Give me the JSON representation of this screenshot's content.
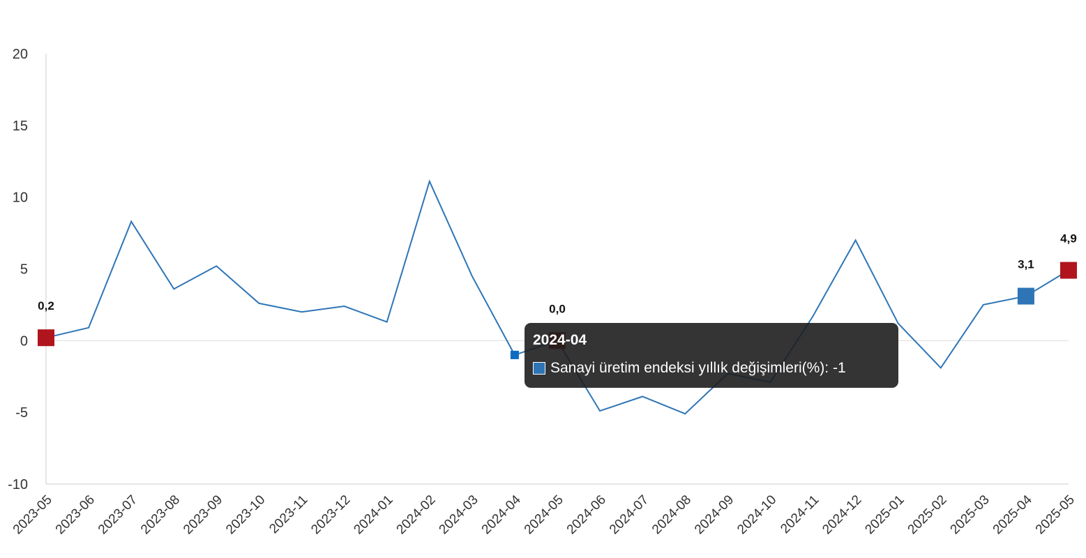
{
  "chart_data": {
    "type": "line",
    "title": "",
    "xlabel": "",
    "ylabel": "",
    "ylim": [
      -10,
      20
    ],
    "yticks": [
      "20",
      "15",
      "10",
      "5",
      "0",
      "-5",
      "-10"
    ],
    "ytick_values": [
      20,
      15,
      10,
      5,
      0,
      -5,
      -10
    ],
    "categories": [
      "2023-05",
      "2023-06",
      "2023-07",
      "2023-08",
      "2023-09",
      "2023-10",
      "2023-11",
      "2023-12",
      "2024-01",
      "2024-02",
      "2024-03",
      "2024-04",
      "2024-05",
      "2024-06",
      "2024-07",
      "2024-08",
      "2024-09",
      "2024-10",
      "2024-11",
      "2024-12",
      "2025-01",
      "2025-02",
      "2025-03",
      "2025-04",
      "2025-05"
    ],
    "series": [
      {
        "name": "Sanayi üretim endeksi yıllık değişimleri(%)",
        "color": "#2e75b6",
        "values": [
          0.2,
          0.9,
          8.3,
          3.6,
          5.2,
          2.6,
          2.0,
          2.4,
          1.3,
          11.1,
          4.5,
          -1.0,
          0.0,
          -4.9,
          -3.9,
          -5.1,
          -2.3,
          -2.9,
          1.7,
          7.0,
          1.2,
          -1.9,
          2.5,
          3.1,
          4.9
        ]
      }
    ],
    "data_labels": [
      {
        "index": 0,
        "text": "0,2",
        "marker_color": "#b0151d"
      },
      {
        "index": 12,
        "text": "0,0",
        "marker_color": "#b0151d"
      },
      {
        "index": 23,
        "text": "3,1",
        "marker_color": "#2e75b6"
      },
      {
        "index": 24,
        "text": "4,9",
        "marker_color": "#b0151d"
      }
    ],
    "grid": false,
    "legend": "none"
  },
  "tooltip": {
    "title": "2024-04",
    "text": "Sanayi üretim endeksi yıllık değişimleri(%): -1",
    "swatch_color": "#2e75b6",
    "hover_index": 11
  }
}
